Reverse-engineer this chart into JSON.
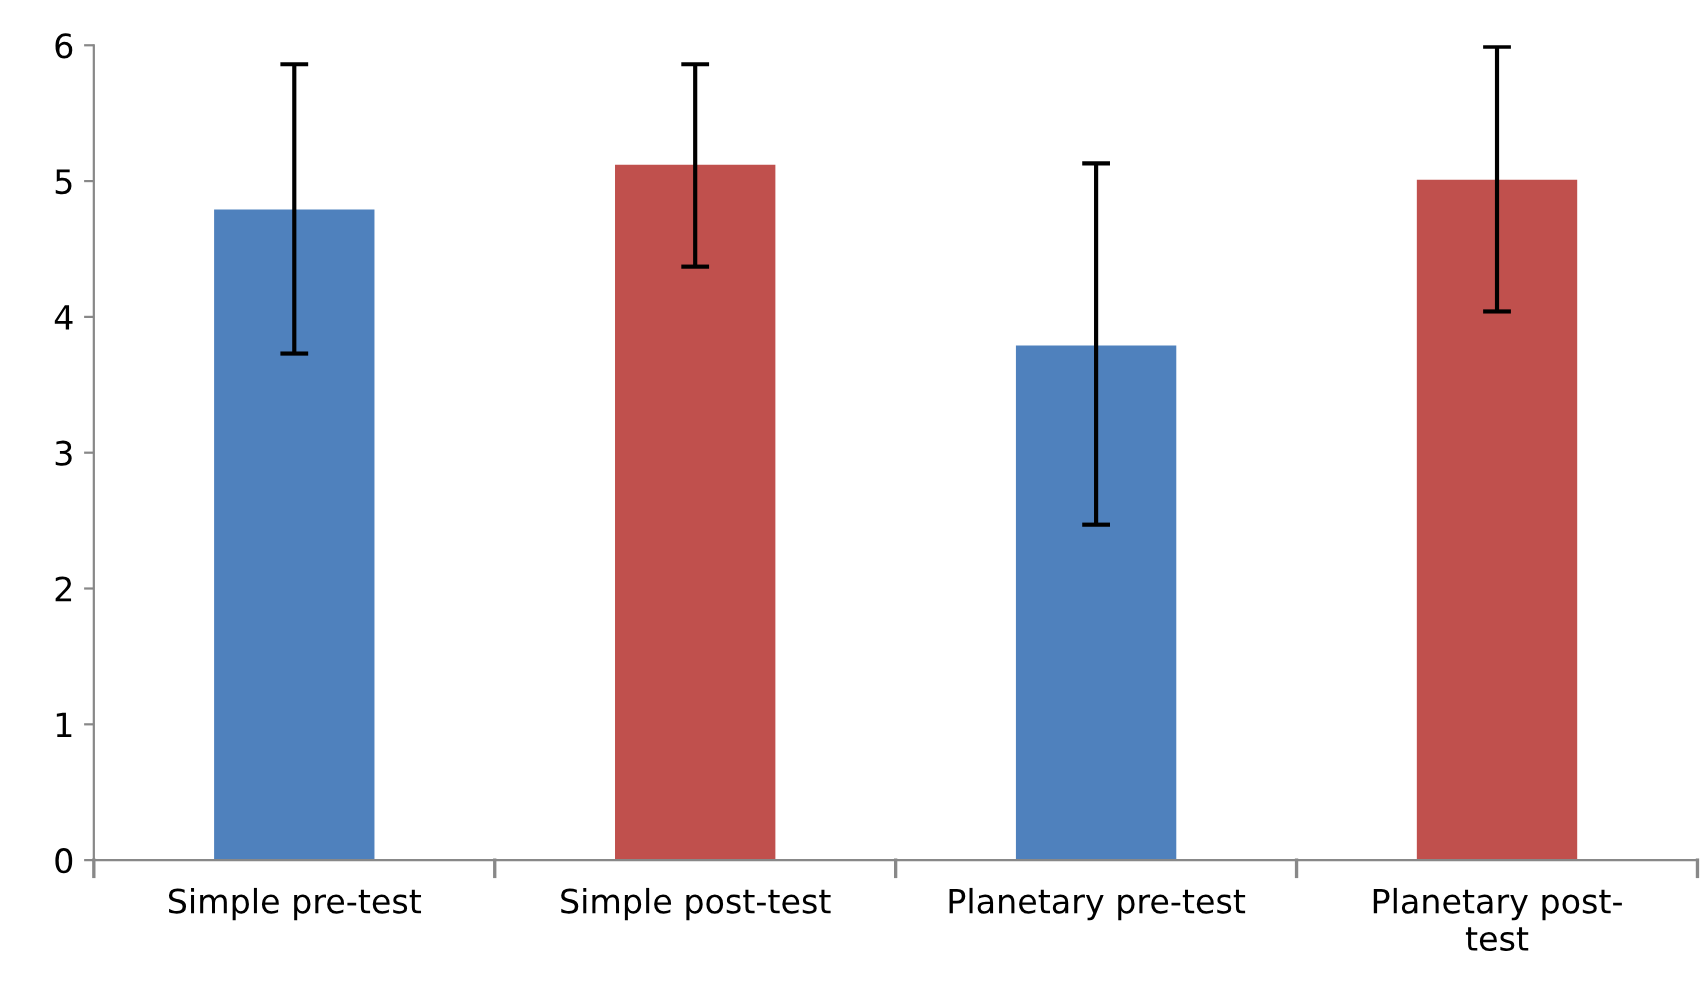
{
  "chart_data": {
    "type": "bar",
    "categories": [
      "Simple pre-test",
      "Simple post-test",
      "Planetary pre-test",
      "Planetary post-test"
    ],
    "values": [
      4.79,
      5.12,
      3.79,
      5.01
    ],
    "colors": [
      "#4f81bd",
      "#c0504d",
      "#4f81bd",
      "#c0504d"
    ],
    "errors": [
      [
        3.73,
        5.86
      ],
      [
        4.37,
        5.86
      ],
      [
        2.47,
        5.13
      ],
      [
        4.04,
        5.99
      ]
    ],
    "ylim": [
      0,
      6
    ],
    "yticks": [
      0,
      1,
      2,
      3,
      4,
      5,
      6
    ],
    "grid": false,
    "legend": false
  }
}
